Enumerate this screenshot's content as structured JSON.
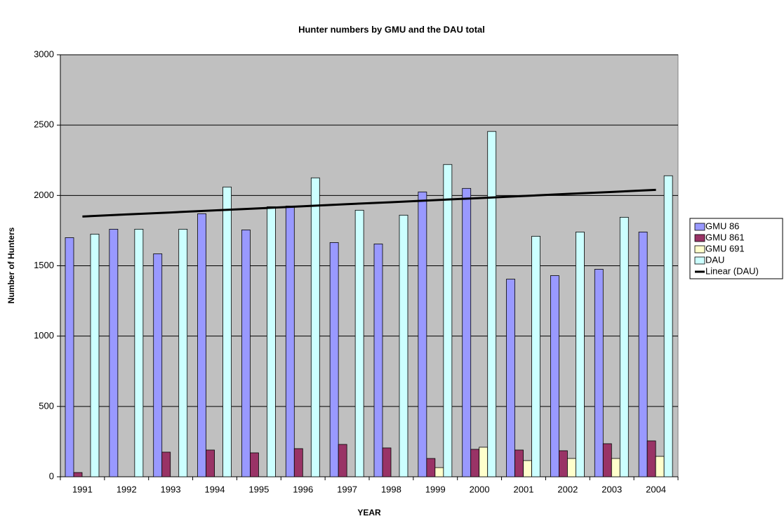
{
  "chart_data": {
    "type": "bar",
    "title": "Hunter numbers by GMU and the DAU total",
    "x_label": "YEAR",
    "y_label": "Number of Hunters",
    "categories": [
      "1991",
      "1992",
      "1993",
      "1994",
      "1995",
      "1996",
      "1997",
      "1998",
      "1999",
      "2000",
      "2001",
      "2002",
      "2003",
      "2004"
    ],
    "series": [
      {
        "name": "GMU 86",
        "color": "#9999ff",
        "values": [
          1700,
          1760,
          1585,
          1870,
          1755,
          1925,
          1665,
          1655,
          2025,
          2050,
          1405,
          1430,
          1475,
          1740
        ]
      },
      {
        "name": "GMU 861",
        "color": "#993366",
        "values": [
          30,
          null,
          175,
          190,
          170,
          200,
          230,
          205,
          130,
          195,
          190,
          185,
          235,
          255
        ]
      },
      {
        "name": "GMU 691",
        "color": "#ffffcc",
        "values": [
          null,
          null,
          null,
          null,
          null,
          null,
          null,
          null,
          65,
          210,
          115,
          130,
          130,
          145
        ]
      },
      {
        "name": "DAU",
        "color": "#ccffff",
        "values": [
          1725,
          1760,
          1760,
          2060,
          1920,
          2125,
          1895,
          1860,
          2220,
          2455,
          1710,
          1740,
          1845,
          2140
        ]
      },
      {
        "name": "Linear (DAU)",
        "color": "#000000",
        "type": "line",
        "values": [
          1850,
          1865,
          1879,
          1894,
          1908,
          1923,
          1938,
          1952,
          1967,
          1981,
          1996,
          2011,
          2025,
          2040
        ]
      }
    ],
    "ylim": [
      0,
      3000
    ],
    "yticks": [
      0,
      500,
      1000,
      1500,
      2000,
      2500,
      3000
    ],
    "grid": true,
    "plot_background": "#c0c0c0",
    "legend": "right"
  }
}
